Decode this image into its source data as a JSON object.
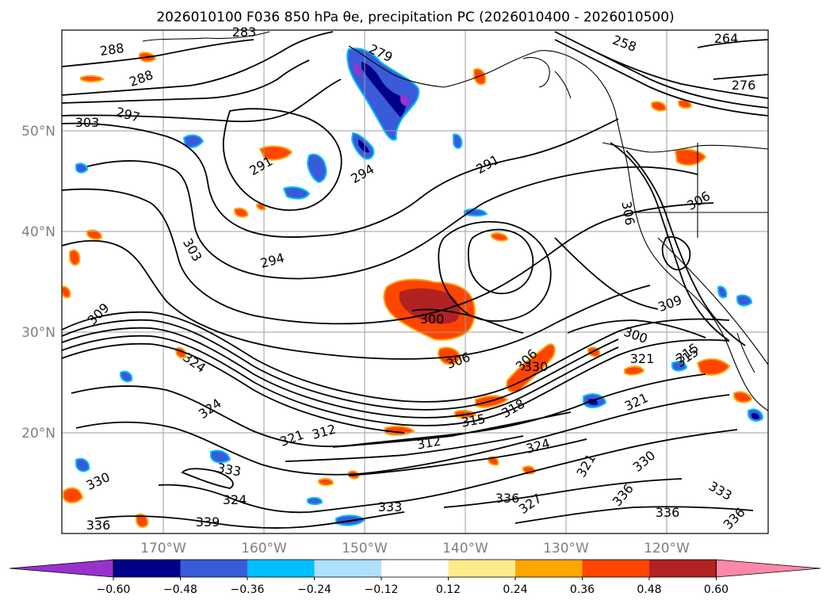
{
  "title": "2026010100 F036 850 hPa θe, precipitation PC (2026010400 - 2026010500)",
  "lat_labels": [
    "50°N",
    "40°N",
    "30°N",
    "20°N"
  ],
  "lon_labels": [
    "170°W",
    "160°W",
    "150°W",
    "140°W",
    "130°W",
    "120°W"
  ],
  "colorbar": {
    "colors": [
      "#9932cc",
      "#00008b",
      "#3a5bd9",
      "#00bfff",
      "#b0e0ff",
      "#ffffff",
      "#ffeb8a",
      "#ffa500",
      "#ff4500",
      "#b22222",
      "#ff88aa"
    ],
    "ticks": [
      "−0.60",
      "−0.48",
      "−0.36",
      "−0.24",
      "−0.12",
      "0.12",
      "0.24",
      "0.36",
      "0.48",
      "0.60"
    ]
  },
  "contour_labels": [
    "288",
    "288",
    "283",
    "279",
    "264",
    "258",
    "276",
    "303",
    "297",
    "291",
    "294",
    "291",
    "300",
    "303",
    "294",
    "309",
    "306",
    "306",
    "300",
    "306",
    "309",
    "306",
    "315",
    "312",
    "321",
    "324",
    "318",
    "315",
    "312",
    "324",
    "321",
    "330",
    "336",
    "333",
    "324",
    "336",
    "327",
    "333",
    "339",
    "336",
    "333",
    "336",
    "336",
    "330",
    "321",
    "324",
    "330",
    "321",
    "315"
  ]
}
